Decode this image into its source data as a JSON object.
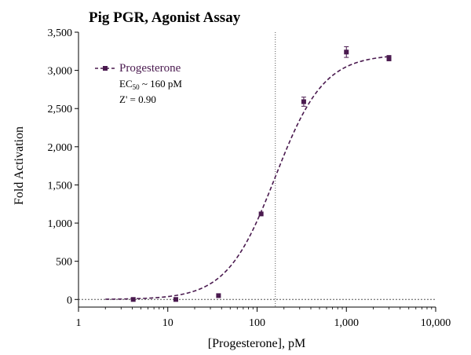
{
  "chart_data": {
    "type": "scatter",
    "title": "Pig PGR, Agonist Assay",
    "xlabel": "[Progesterone], pM",
    "ylabel": "Fold Activation",
    "xscale": "log",
    "xlim": [
      1,
      10000
    ],
    "ylim": [
      -100,
      3500
    ],
    "xticks": [
      1,
      10,
      100,
      1000,
      10000
    ],
    "xtick_labels": [
      "1",
      "10",
      "100",
      "1,000",
      "10,000"
    ],
    "yticks": [
      0,
      500,
      1000,
      1500,
      2000,
      2500,
      3000,
      3500
    ],
    "ytick_labels": [
      "0",
      "500",
      "1,000",
      "1,500",
      "2,000",
      "2,500",
      "3,000",
      "3,500"
    ],
    "legend_position": "top-left",
    "grid": false,
    "reference_lines": {
      "baseline_y": 0,
      "ec50_x": 160
    },
    "series": [
      {
        "name": "Progesterone",
        "color": "#4a1a4f",
        "marker": "square",
        "line_style": "dashed",
        "x": [
          4.1,
          12.3,
          37,
          111,
          333,
          1000,
          3000
        ],
        "y": [
          0,
          0,
          50,
          1120,
          2590,
          3240,
          3160
        ],
        "error": [
          0,
          0,
          0,
          0,
          60,
          70,
          35
        ],
        "fit": {
          "model": "4PL",
          "bottom": 0,
          "top": 3210,
          "ec50": 160,
          "hill": 1.6
        }
      }
    ],
    "annotations": {
      "ec50_prefix": "EC",
      "ec50_sub": "50",
      "ec50_suffix": " ~ 160 pM",
      "zprime": "Z' = 0.90"
    }
  }
}
